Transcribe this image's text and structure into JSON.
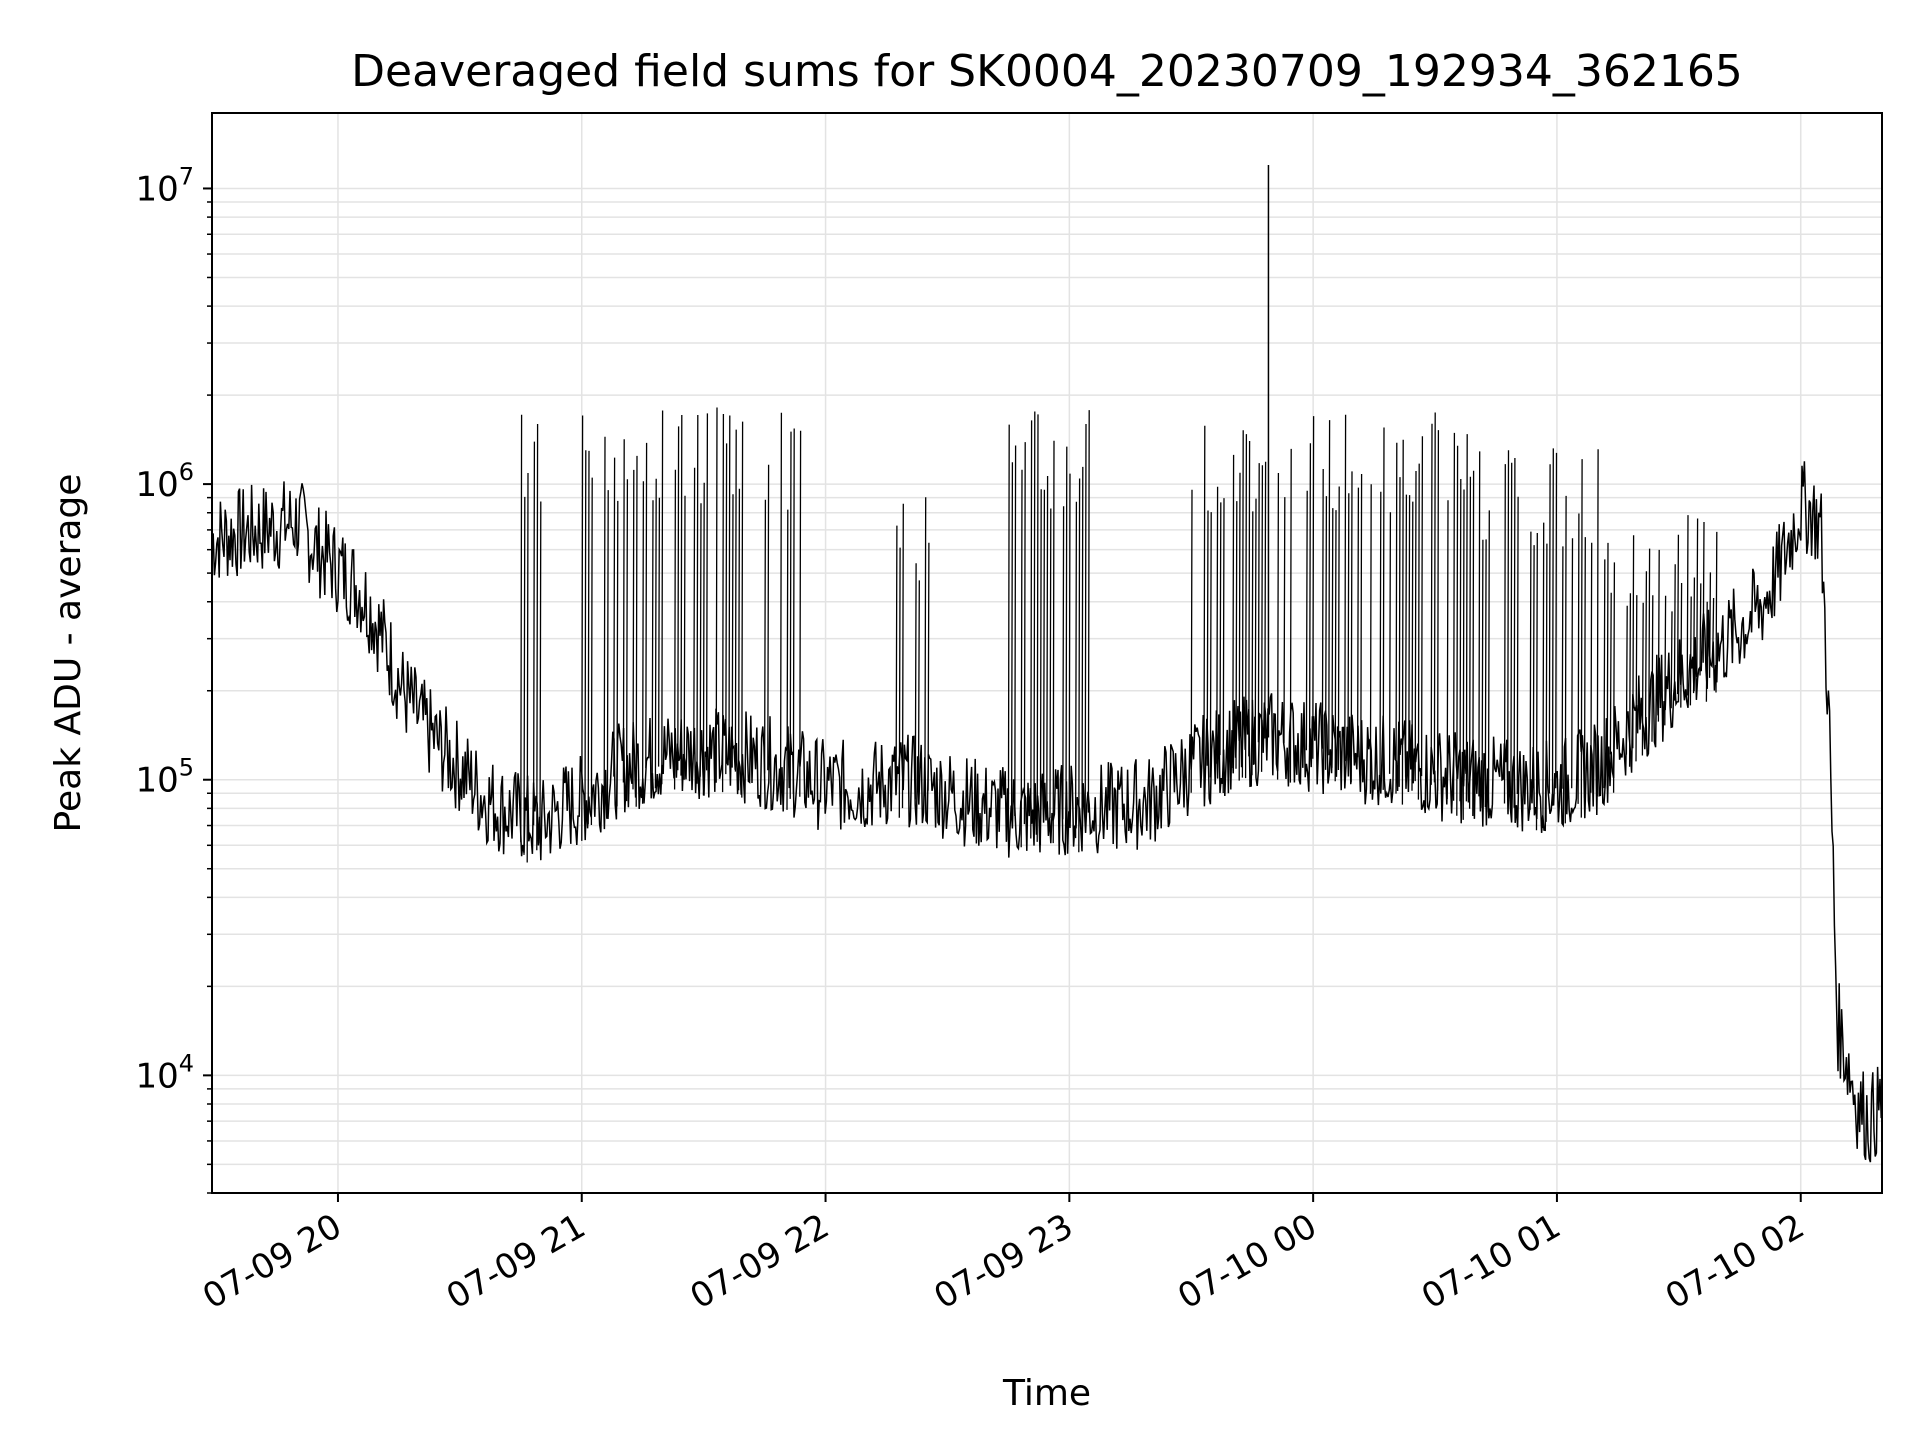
{
  "chart_data": {
    "type": "line",
    "title": "Deaveraged field sums for SK0004_20230709_192934_362165",
    "xlabel": "Time",
    "ylabel": "Peak ADU - average",
    "yscale": "log",
    "ylim": [
      4000,
      18000000
    ],
    "xlim": [
      "2023-07-09 19:29",
      "2023-07-10 02:20"
    ],
    "grid": true,
    "line_color": "#000000",
    "grid_color": "#e3e3e3",
    "x_ticks": [
      {
        "label": "07-09 20",
        "time": "2023-07-09 20:00"
      },
      {
        "label": "07-09 21",
        "time": "2023-07-09 21:00"
      },
      {
        "label": "07-09 22",
        "time": "2023-07-09 22:00"
      },
      {
        "label": "07-09 23",
        "time": "2023-07-09 23:00"
      },
      {
        "label": "07-10 00",
        "time": "2023-07-10 00:00"
      },
      {
        "label": "07-10 01",
        "time": "2023-07-10 01:00"
      },
      {
        "label": "07-10 02",
        "time": "2023-07-10 02:00"
      }
    ],
    "y_ticks": [
      {
        "base": "10",
        "exp": "4",
        "value": 10000
      },
      {
        "base": "10",
        "exp": "5",
        "value": 100000
      },
      {
        "base": "10",
        "exp": "6",
        "value": 1000000
      },
      {
        "base": "10",
        "exp": "7",
        "value": 10000000
      }
    ],
    "series": [
      {
        "x": [
          "2023-07-09 19:29",
          "2023-07-09 19:35",
          "2023-07-09 19:40",
          "2023-07-09 19:45",
          "2023-07-09 19:50",
          "2023-07-09 19:55",
          "2023-07-09 20:00",
          "2023-07-09 20:05",
          "2023-07-09 20:08",
          "2023-07-09 20:12",
          "2023-07-09 20:16",
          "2023-07-09 20:20",
          "2023-07-09 20:25",
          "2023-07-09 20:30",
          "2023-07-09 20:35",
          "2023-07-09 20:40",
          "2023-07-09 20:45",
          "2023-07-09 20:50",
          "2023-07-09 20:55",
          "2023-07-09 21:00",
          "2023-07-09 21:10",
          "2023-07-09 21:20",
          "2023-07-09 21:30",
          "2023-07-09 21:40",
          "2023-07-09 21:50",
          "2023-07-09 22:00",
          "2023-07-09 22:10",
          "2023-07-09 22:20",
          "2023-07-09 22:30",
          "2023-07-09 22:40",
          "2023-07-09 22:50",
          "2023-07-09 23:00",
          "2023-07-09 23:10",
          "2023-07-09 23:20",
          "2023-07-09 23:30",
          "2023-07-09 23:40",
          "2023-07-09 23:50",
          "2023-07-10 00:00",
          "2023-07-10 00:10",
          "2023-07-10 00:20",
          "2023-07-10 00:30",
          "2023-07-10 00:40",
          "2023-07-10 00:50",
          "2023-07-10 01:00",
          "2023-07-10 01:10",
          "2023-07-10 01:20",
          "2023-07-10 01:30",
          "2023-07-10 01:40",
          "2023-07-10 01:50",
          "2023-07-10 01:55",
          "2023-07-10 02:00",
          "2023-07-10 02:03",
          "2023-07-10 02:05",
          "2023-07-10 02:07",
          "2023-07-10 02:09",
          "2023-07-10 02:11",
          "2023-07-10 02:14",
          "2023-07-10 02:17",
          "2023-07-10 02:20"
        ],
        "y": [
          650000,
          680000,
          700000,
          720000,
          750000,
          600000,
          520000,
          450000,
          380000,
          280000,
          200000,
          160000,
          130000,
          110000,
          90000,
          80000,
          75000,
          70000,
          80000,
          85000,
          110000,
          120000,
          125000,
          120000,
          110000,
          95000,
          95000,
          100000,
          90000,
          80000,
          75000,
          80000,
          80000,
          85000,
          110000,
          130000,
          140000,
          130000,
          120000,
          115000,
          105000,
          100000,
          95000,
          95000,
          110000,
          160000,
          220000,
          280000,
          380000,
          520000,
          850000,
          800000,
          700000,
          150000,
          15000,
          12000,
          8000,
          7000,
          8000
        ]
      }
    ],
    "bursts": [
      {
        "x": [
          "2023-07-09 20:45",
          "2023-07-09 20:50"
        ],
        "upper": 1450000
      },
      {
        "x": [
          "2023-07-09 21:00",
          "2023-07-09 21:40"
        ],
        "upper": 1550000
      },
      {
        "x": [
          "2023-07-09 21:45",
          "2023-07-09 21:55"
        ],
        "upper": 1500000
      },
      {
        "x": [
          "2023-07-09 22:15",
          "2023-07-09 22:28"
        ],
        "upper": 800000
      },
      {
        "x": [
          "2023-07-09 22:45",
          "2023-07-09 23:05"
        ],
        "upper": 1500000
      },
      {
        "x": [
          "2023-07-09 23:30",
          "2023-07-10 00:40"
        ],
        "upper": 1450000
      },
      {
        "x": [
          "2023-07-10 00:40",
          "2023-07-10 01:10"
        ],
        "upper": 1100000
      },
      {
        "x": [
          "2023-07-10 01:10",
          "2023-07-10 01:40"
        ],
        "upper": 650000
      }
    ],
    "spike": {
      "x": "2023-07-09 23:49",
      "y": 12000000
    }
  }
}
